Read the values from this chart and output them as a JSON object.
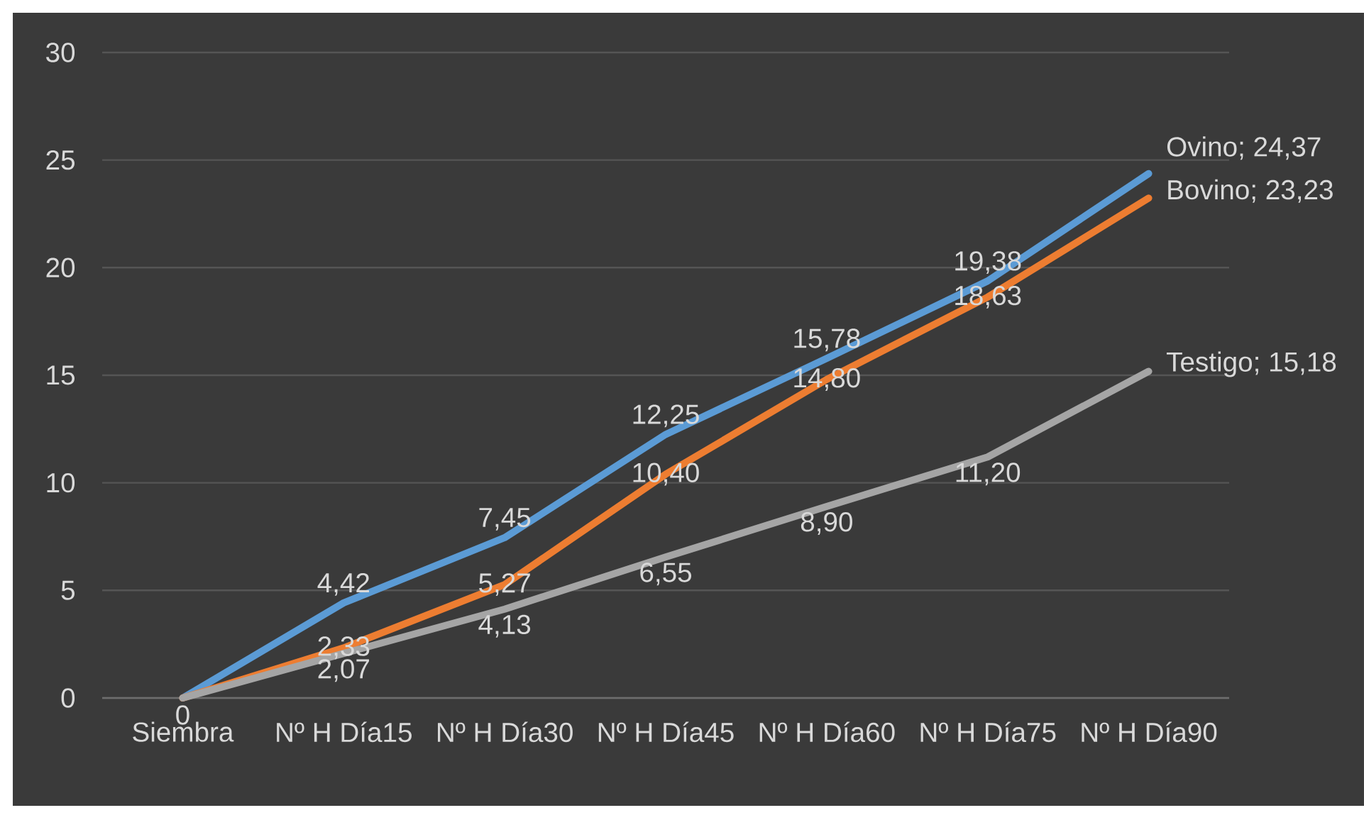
{
  "chart_data": {
    "type": "line",
    "categories": [
      "Siembra",
      "Nº H Día15",
      "Nº H Día30",
      "Nº H Día45",
      "Nº H Día60",
      "Nº H Día75",
      "Nº H Día90"
    ],
    "series": [
      {
        "color": "#5b9bd5",
        "values": [
          0,
          4.42,
          7.45,
          12.25,
          15.78,
          19.38,
          24.37
        ],
        "value_labels": [
          null,
          "4,42",
          "7,45",
          "12,25",
          "15,78",
          "19,38",
          "Ovino; 24,37"
        ]
      },
      {
        "color": "#ed7d31",
        "values": [
          0,
          2.33,
          5.27,
          10.4,
          14.8,
          18.63,
          23.23
        ],
        "value_labels": [
          null,
          "2,33",
          "5,27",
          "10,40",
          "14,80",
          "18,63",
          "Bovino; 23,23"
        ]
      },
      {
        "color": "#a5a5a5",
        "values": [
          0,
          2.07,
          4.13,
          6.55,
          8.9,
          11.2,
          15.18
        ],
        "value_labels": [
          "0",
          "2,07",
          "4,13",
          "6,55",
          "8,90",
          "11,20",
          "Testigo; 15,18"
        ]
      }
    ],
    "ylim": [
      0,
      30
    ],
    "yticks": [
      0,
      5,
      10,
      15,
      20,
      25,
      30
    ],
    "grid": "y",
    "marker": "none",
    "line_style": "solid"
  }
}
